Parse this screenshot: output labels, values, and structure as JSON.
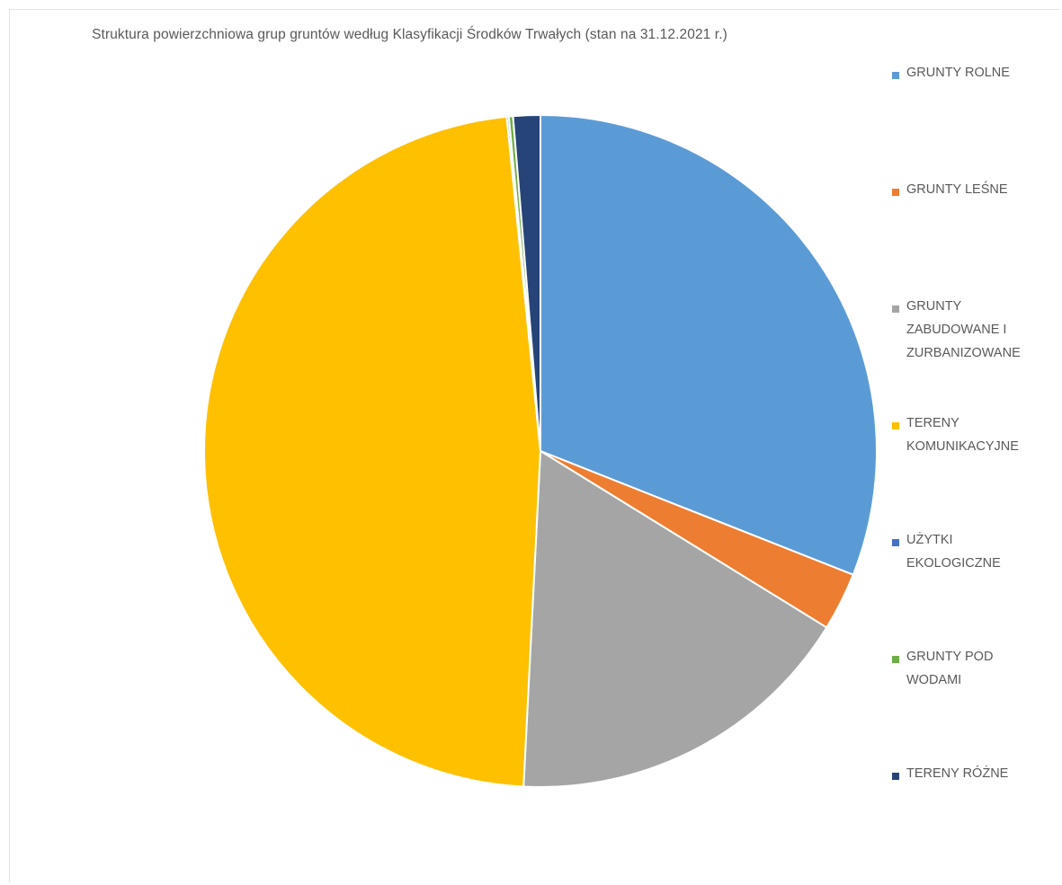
{
  "chart_data": {
    "type": "pie",
    "title": "Struktura powierzchniowa grup gruntów według Klasyfikacji Środków Trwałych (stan na 31.12.2021 r.)",
    "legend_position": "right",
    "series": [
      {
        "name": "GRUNTY ROLNE",
        "value": 31.0,
        "color": "#5B9BD5"
      },
      {
        "name": "GRUNTY LEŚNE",
        "value": 2.8,
        "color": "#ED7D31"
      },
      {
        "name": "GRUNTY ZABUDOWANE I ZURBANIZOWANE",
        "value": 17.0,
        "color": "#A5A5A5"
      },
      {
        "name": "TERENY KOMUNIKACYJNE",
        "value": 47.6,
        "color": "#FFC000"
      },
      {
        "name": "UŻYTKI EKOLOGICZNE",
        "value": 0.1,
        "color": "#4472C4"
      },
      {
        "name": "GRUNTY POD WODAMI",
        "value": 0.2,
        "color": "#70AD47"
      },
      {
        "name": "TERENY RÓŻNE",
        "value": 1.3,
        "color": "#264478"
      }
    ]
  }
}
